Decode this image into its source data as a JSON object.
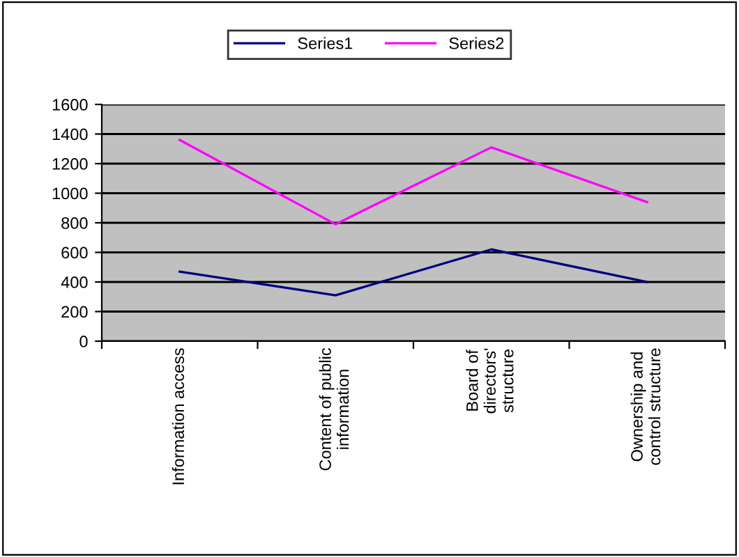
{
  "chart_data": {
    "type": "line",
    "categories": [
      "Information access",
      "Content of public\ninformation",
      "Board of\ndirectors'\nstructure",
      "Ownership and\ncontrol structure"
    ],
    "series": [
      {
        "name": "Series1",
        "color": "#000080",
        "values": [
          470,
          310,
          620,
          400
        ]
      },
      {
        "name": "Series2",
        "color": "#ff00ff",
        "values": [
          1360,
          790,
          1310,
          940
        ]
      }
    ],
    "ylim": [
      0,
      1600
    ],
    "yticks": [
      0,
      200,
      400,
      600,
      800,
      1000,
      1200,
      1400,
      1600
    ],
    "grid": "y",
    "legend": "top",
    "marker": "none",
    "line_style": "solid"
  }
}
